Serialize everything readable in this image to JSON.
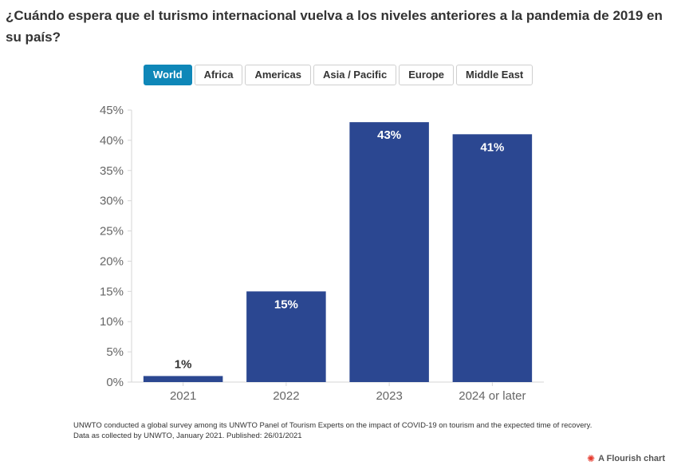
{
  "title": "¿Cuándo espera que el turismo internacional vuelva a los niveles anteriores a la pandemia de 2019 en su país?",
  "tabs": [
    {
      "label": "World",
      "active": true
    },
    {
      "label": "Africa",
      "active": false
    },
    {
      "label": "Americas",
      "active": false
    },
    {
      "label": "Asia / Pacific",
      "active": false
    },
    {
      "label": "Europe",
      "active": false
    },
    {
      "label": "Middle East",
      "active": false
    }
  ],
  "chart_data": {
    "type": "bar",
    "categories": [
      "2021",
      "2022",
      "2023",
      "2024 or later"
    ],
    "values": [
      1,
      15,
      43,
      41
    ],
    "data_labels": [
      "1%",
      "15%",
      "43%",
      "41%"
    ],
    "ylim": [
      0,
      45
    ],
    "yticks": [
      "0%",
      "5%",
      "10%",
      "15%",
      "20%",
      "25%",
      "30%",
      "35%",
      "40%",
      "45%"
    ],
    "xlabel": "",
    "ylabel": "",
    "bar_color": "#2b4791",
    "grid": false
  },
  "footnote": {
    "line1": "UNWTO conducted a global survey among its UNWTO Panel of Tourism Experts on the impact of COVID-19 on tourism and the expected time of recovery.",
    "line2": "Data as collected by UNWTO, January 2021. Published: 26/01/2021"
  },
  "branding": {
    "label": "A Flourish chart",
    "icon": "flourish-logo-icon"
  }
}
